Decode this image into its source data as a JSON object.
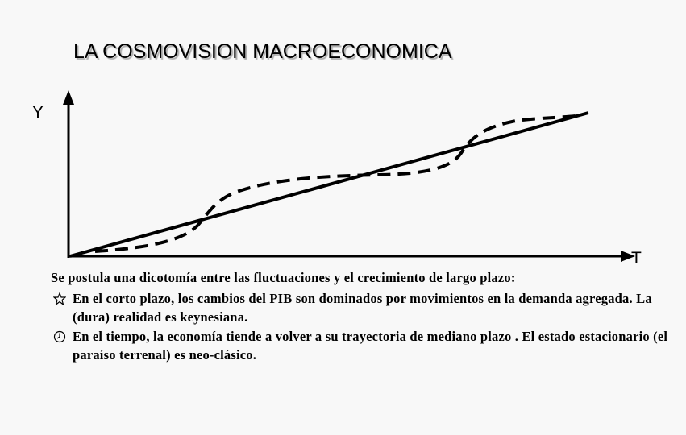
{
  "title": "LA COSMOVISION MACROECONOMICA",
  "diagram": {
    "y_axis_label": "Y",
    "x_axis_label": "T"
  },
  "text": {
    "intro": "Se postula una dicotomía entre las fluctuaciones  y el crecimiento de largo plazo:",
    "bullets": [
      "En el corto plazo, los cambios del PIB  son dominados por movimientos en la demanda agregada. La (dura) realidad  es keynesiana.",
      "En el tiempo, la economía tiende a volver a su trayectoria de mediano plazo . El estado estacionario (el paraíso  terrenal) es neo-clásico."
    ]
  }
}
